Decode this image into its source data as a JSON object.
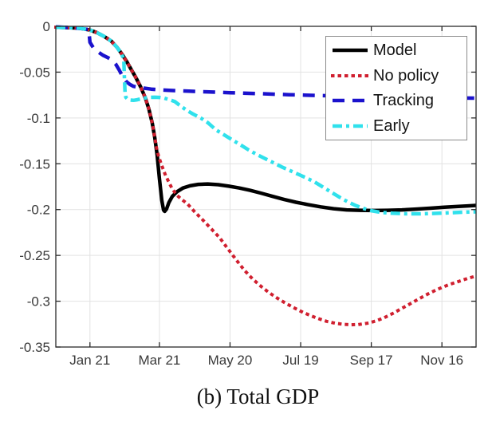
{
  "figure": {
    "caption": "(b) Total GDP",
    "background_color": "#ffffff"
  },
  "chart_data": {
    "type": "line",
    "title": "",
    "xlabel": "",
    "ylabel": "",
    "grid": true,
    "axis_color": "#2b2b2b",
    "grid_color": "#e2e2e2",
    "tick_label_color": "#3a3a3a",
    "legend": {
      "position": "top-right",
      "border_color": "#8a8a8a",
      "background": "#ffffff"
    },
    "x_axis": {
      "unit": "day-of-year",
      "range": [
        -8,
        349
      ],
      "ticks": [
        {
          "day": 21,
          "label": "Jan 21"
        },
        {
          "day": 80,
          "label": "Mar 21"
        },
        {
          "day": 140,
          "label": "May 20"
        },
        {
          "day": 200,
          "label": "Jul 19"
        },
        {
          "day": 260,
          "label": "Sep 17"
        },
        {
          "day": 320,
          "label": "Nov 16"
        }
      ]
    },
    "y_axis": {
      "range": [
        -0.35,
        0
      ],
      "ticks": [
        {
          "value": 0,
          "label": "0"
        },
        {
          "value": -0.05,
          "label": "-0.05"
        },
        {
          "value": -0.1,
          "label": "-0.1"
        },
        {
          "value": -0.15,
          "label": "-0.15"
        },
        {
          "value": -0.2,
          "label": "-0.2"
        },
        {
          "value": -0.25,
          "label": "-0.25"
        },
        {
          "value": -0.3,
          "label": "-0.3"
        },
        {
          "value": -0.35,
          "label": "-0.35"
        }
      ]
    },
    "series": [
      {
        "name": "Model",
        "color": "#000000",
        "line_style": "solid",
        "dash": "none",
        "width": 4.5,
        "cap": "butt",
        "points": [
          [
            -8,
            -0.001
          ],
          [
            4,
            -0.0015
          ],
          [
            12,
            -0.002
          ],
          [
            21,
            -0.004
          ],
          [
            27,
            -0.007
          ],
          [
            33,
            -0.011
          ],
          [
            39,
            -0.016
          ],
          [
            44,
            -0.023
          ],
          [
            48,
            -0.03
          ],
          [
            52,
            -0.038
          ],
          [
            56,
            -0.047
          ],
          [
            60,
            -0.056
          ],
          [
            64,
            -0.066
          ],
          [
            68,
            -0.078
          ],
          [
            71,
            -0.09
          ],
          [
            74,
            -0.106
          ],
          [
            76,
            -0.121
          ],
          [
            78,
            -0.14
          ],
          [
            80,
            -0.166
          ],
          [
            82,
            -0.19
          ],
          [
            83.5,
            -0.2005
          ],
          [
            84.5,
            -0.202
          ],
          [
            86,
            -0.1995
          ],
          [
            88,
            -0.1925
          ],
          [
            91,
            -0.1855
          ],
          [
            95,
            -0.1805
          ],
          [
            100,
            -0.1765
          ],
          [
            106,
            -0.174
          ],
          [
            113,
            -0.1725
          ],
          [
            121,
            -0.172
          ],
          [
            130,
            -0.1728
          ],
          [
            139,
            -0.1745
          ],
          [
            148,
            -0.1765
          ],
          [
            157,
            -0.179
          ],
          [
            166,
            -0.182
          ],
          [
            176,
            -0.1855
          ],
          [
            186,
            -0.189
          ],
          [
            196,
            -0.192
          ],
          [
            206,
            -0.1945
          ],
          [
            217,
            -0.197
          ],
          [
            228,
            -0.199
          ],
          [
            239,
            -0.2003
          ],
          [
            250,
            -0.2008
          ],
          [
            262,
            -0.201
          ],
          [
            274,
            -0.2008
          ],
          [
            286,
            -0.2003
          ],
          [
            298,
            -0.1995
          ],
          [
            310,
            -0.1985
          ],
          [
            322,
            -0.1975
          ],
          [
            334,
            -0.1965
          ],
          [
            342,
            -0.196
          ],
          [
            349,
            -0.1955
          ]
        ]
      },
      {
        "name": "No policy",
        "color": "#d01f2f",
        "line_style": "dotted",
        "dash": "0.5 8",
        "width": 4,
        "cap": "square",
        "points": [
          [
            -8,
            -0.001
          ],
          [
            4,
            -0.0015
          ],
          [
            12,
            -0.002
          ],
          [
            21,
            -0.004
          ],
          [
            27,
            -0.007
          ],
          [
            33,
            -0.011
          ],
          [
            39,
            -0.016
          ],
          [
            44,
            -0.023
          ],
          [
            48,
            -0.03
          ],
          [
            52,
            -0.038
          ],
          [
            56,
            -0.047
          ],
          [
            60,
            -0.056
          ],
          [
            64,
            -0.066
          ],
          [
            68,
            -0.078
          ],
          [
            71,
            -0.09
          ],
          [
            74,
            -0.106
          ],
          [
            76,
            -0.121
          ],
          [
            78,
            -0.136
          ],
          [
            80,
            -0.1445
          ],
          [
            82,
            -0.152
          ],
          [
            85,
            -0.162
          ],
          [
            88,
            -0.17
          ],
          [
            91,
            -0.1775
          ],
          [
            95,
            -0.1845
          ],
          [
            99,
            -0.189
          ],
          [
            104,
            -0.194
          ],
          [
            110,
            -0.2025
          ],
          [
            117,
            -0.2115
          ],
          [
            124,
            -0.221
          ],
          [
            131,
            -0.2305
          ],
          [
            138,
            -0.2425
          ],
          [
            145,
            -0.2545
          ],
          [
            152,
            -0.266
          ],
          [
            159,
            -0.2755
          ],
          [
            166,
            -0.2835
          ],
          [
            173,
            -0.2905
          ],
          [
            180,
            -0.2965
          ],
          [
            187,
            -0.302
          ],
          [
            194,
            -0.307
          ],
          [
            201,
            -0.3115
          ],
          [
            208,
            -0.3155
          ],
          [
            215,
            -0.319
          ],
          [
            222,
            -0.322
          ],
          [
            229,
            -0.324
          ],
          [
            236,
            -0.3252
          ],
          [
            243,
            -0.3257
          ],
          [
            250,
            -0.3253
          ],
          [
            257,
            -0.324
          ],
          [
            264,
            -0.3215
          ],
          [
            271,
            -0.318
          ],
          [
            278,
            -0.3135
          ],
          [
            285,
            -0.3085
          ],
          [
            292,
            -0.3035
          ],
          [
            299,
            -0.2985
          ],
          [
            306,
            -0.2935
          ],
          [
            313,
            -0.289
          ],
          [
            320,
            -0.285
          ],
          [
            327,
            -0.2815
          ],
          [
            334,
            -0.2785
          ],
          [
            341,
            -0.2755
          ],
          [
            345,
            -0.274
          ],
          [
            349,
            -0.2725
          ]
        ]
      },
      {
        "name": "Tracking",
        "color": "#1b12cd",
        "line_style": "dashed",
        "dash": "15 10",
        "width": 4.5,
        "cap": "butt",
        "points": [
          [
            -8,
            -0.0005
          ],
          [
            5,
            -0.0015
          ],
          [
            14,
            -0.0025
          ],
          [
            20,
            -0.0035
          ],
          [
            21,
            -0.0175
          ],
          [
            24,
            -0.0235
          ],
          [
            28,
            -0.028
          ],
          [
            32,
            -0.0315
          ],
          [
            36,
            -0.034
          ],
          [
            40,
            -0.037
          ],
          [
            43,
            -0.0415
          ],
          [
            46,
            -0.048
          ],
          [
            49,
            -0.0555
          ],
          [
            52,
            -0.0605
          ],
          [
            55,
            -0.0635
          ],
          [
            58,
            -0.0655
          ],
          [
            62,
            -0.0665
          ],
          [
            67,
            -0.0675
          ],
          [
            73,
            -0.0685
          ],
          [
            80,
            -0.0693
          ],
          [
            90,
            -0.07
          ],
          [
            105,
            -0.0708
          ],
          [
            120,
            -0.0715
          ],
          [
            140,
            -0.0724
          ],
          [
            165,
            -0.0735
          ],
          [
            190,
            -0.0746
          ],
          [
            215,
            -0.0755
          ],
          [
            240,
            -0.0762
          ],
          [
            265,
            -0.0769
          ],
          [
            290,
            -0.0774
          ],
          [
            315,
            -0.0779
          ],
          [
            335,
            -0.0782
          ],
          [
            349,
            -0.0784
          ]
        ]
      },
      {
        "name": "Early",
        "color": "#30e1ec",
        "line_style": "dash-dot",
        "dash": "12 5 4 5",
        "width": 4.5,
        "cap": "butt",
        "points": [
          [
            -8,
            -0.001
          ],
          [
            4,
            -0.0015
          ],
          [
            12,
            -0.002
          ],
          [
            21,
            -0.004
          ],
          [
            27,
            -0.007
          ],
          [
            33,
            -0.011
          ],
          [
            39,
            -0.016
          ],
          [
            44,
            -0.023
          ],
          [
            47,
            -0.0285
          ],
          [
            49,
            -0.0335
          ],
          [
            49.8,
            -0.038
          ],
          [
            50.3,
            -0.058
          ],
          [
            50.8,
            -0.072
          ],
          [
            51.5,
            -0.0775
          ],
          [
            53,
            -0.0795
          ],
          [
            55.5,
            -0.0805
          ],
          [
            58,
            -0.0808
          ],
          [
            61,
            -0.0802
          ],
          [
            64,
            -0.0792
          ],
          [
            68,
            -0.0782
          ],
          [
            72,
            -0.0776
          ],
          [
            76,
            -0.0774
          ],
          [
            80,
            -0.0776
          ],
          [
            84,
            -0.0784
          ],
          [
            88,
            -0.0798
          ],
          [
            93,
            -0.082
          ],
          [
            98,
            -0.087
          ],
          [
            103,
            -0.0915
          ],
          [
            109,
            -0.096
          ],
          [
            115,
            -0.1
          ],
          [
            121,
            -0.105
          ],
          [
            128,
            -0.113
          ],
          [
            135,
            -0.1185
          ],
          [
            142,
            -0.124
          ],
          [
            149,
            -0.1295
          ],
          [
            156,
            -0.135
          ],
          [
            163,
            -0.14
          ],
          [
            170,
            -0.1445
          ],
          [
            177,
            -0.149
          ],
          [
            184,
            -0.1535
          ],
          [
            191,
            -0.1575
          ],
          [
            198,
            -0.1615
          ],
          [
            205,
            -0.1655
          ],
          [
            212,
            -0.17
          ],
          [
            219,
            -0.1755
          ],
          [
            226,
            -0.181
          ],
          [
            233,
            -0.1865
          ],
          [
            240,
            -0.1915
          ],
          [
            247,
            -0.1957
          ],
          [
            254,
            -0.199
          ],
          [
            261,
            -0.2015
          ],
          [
            268,
            -0.203
          ],
          [
            278,
            -0.204
          ],
          [
            290,
            -0.2046
          ],
          [
            302,
            -0.2046
          ],
          [
            314,
            -0.2042
          ],
          [
            326,
            -0.2036
          ],
          [
            338,
            -0.2029
          ],
          [
            349,
            -0.2024
          ]
        ]
      }
    ]
  }
}
